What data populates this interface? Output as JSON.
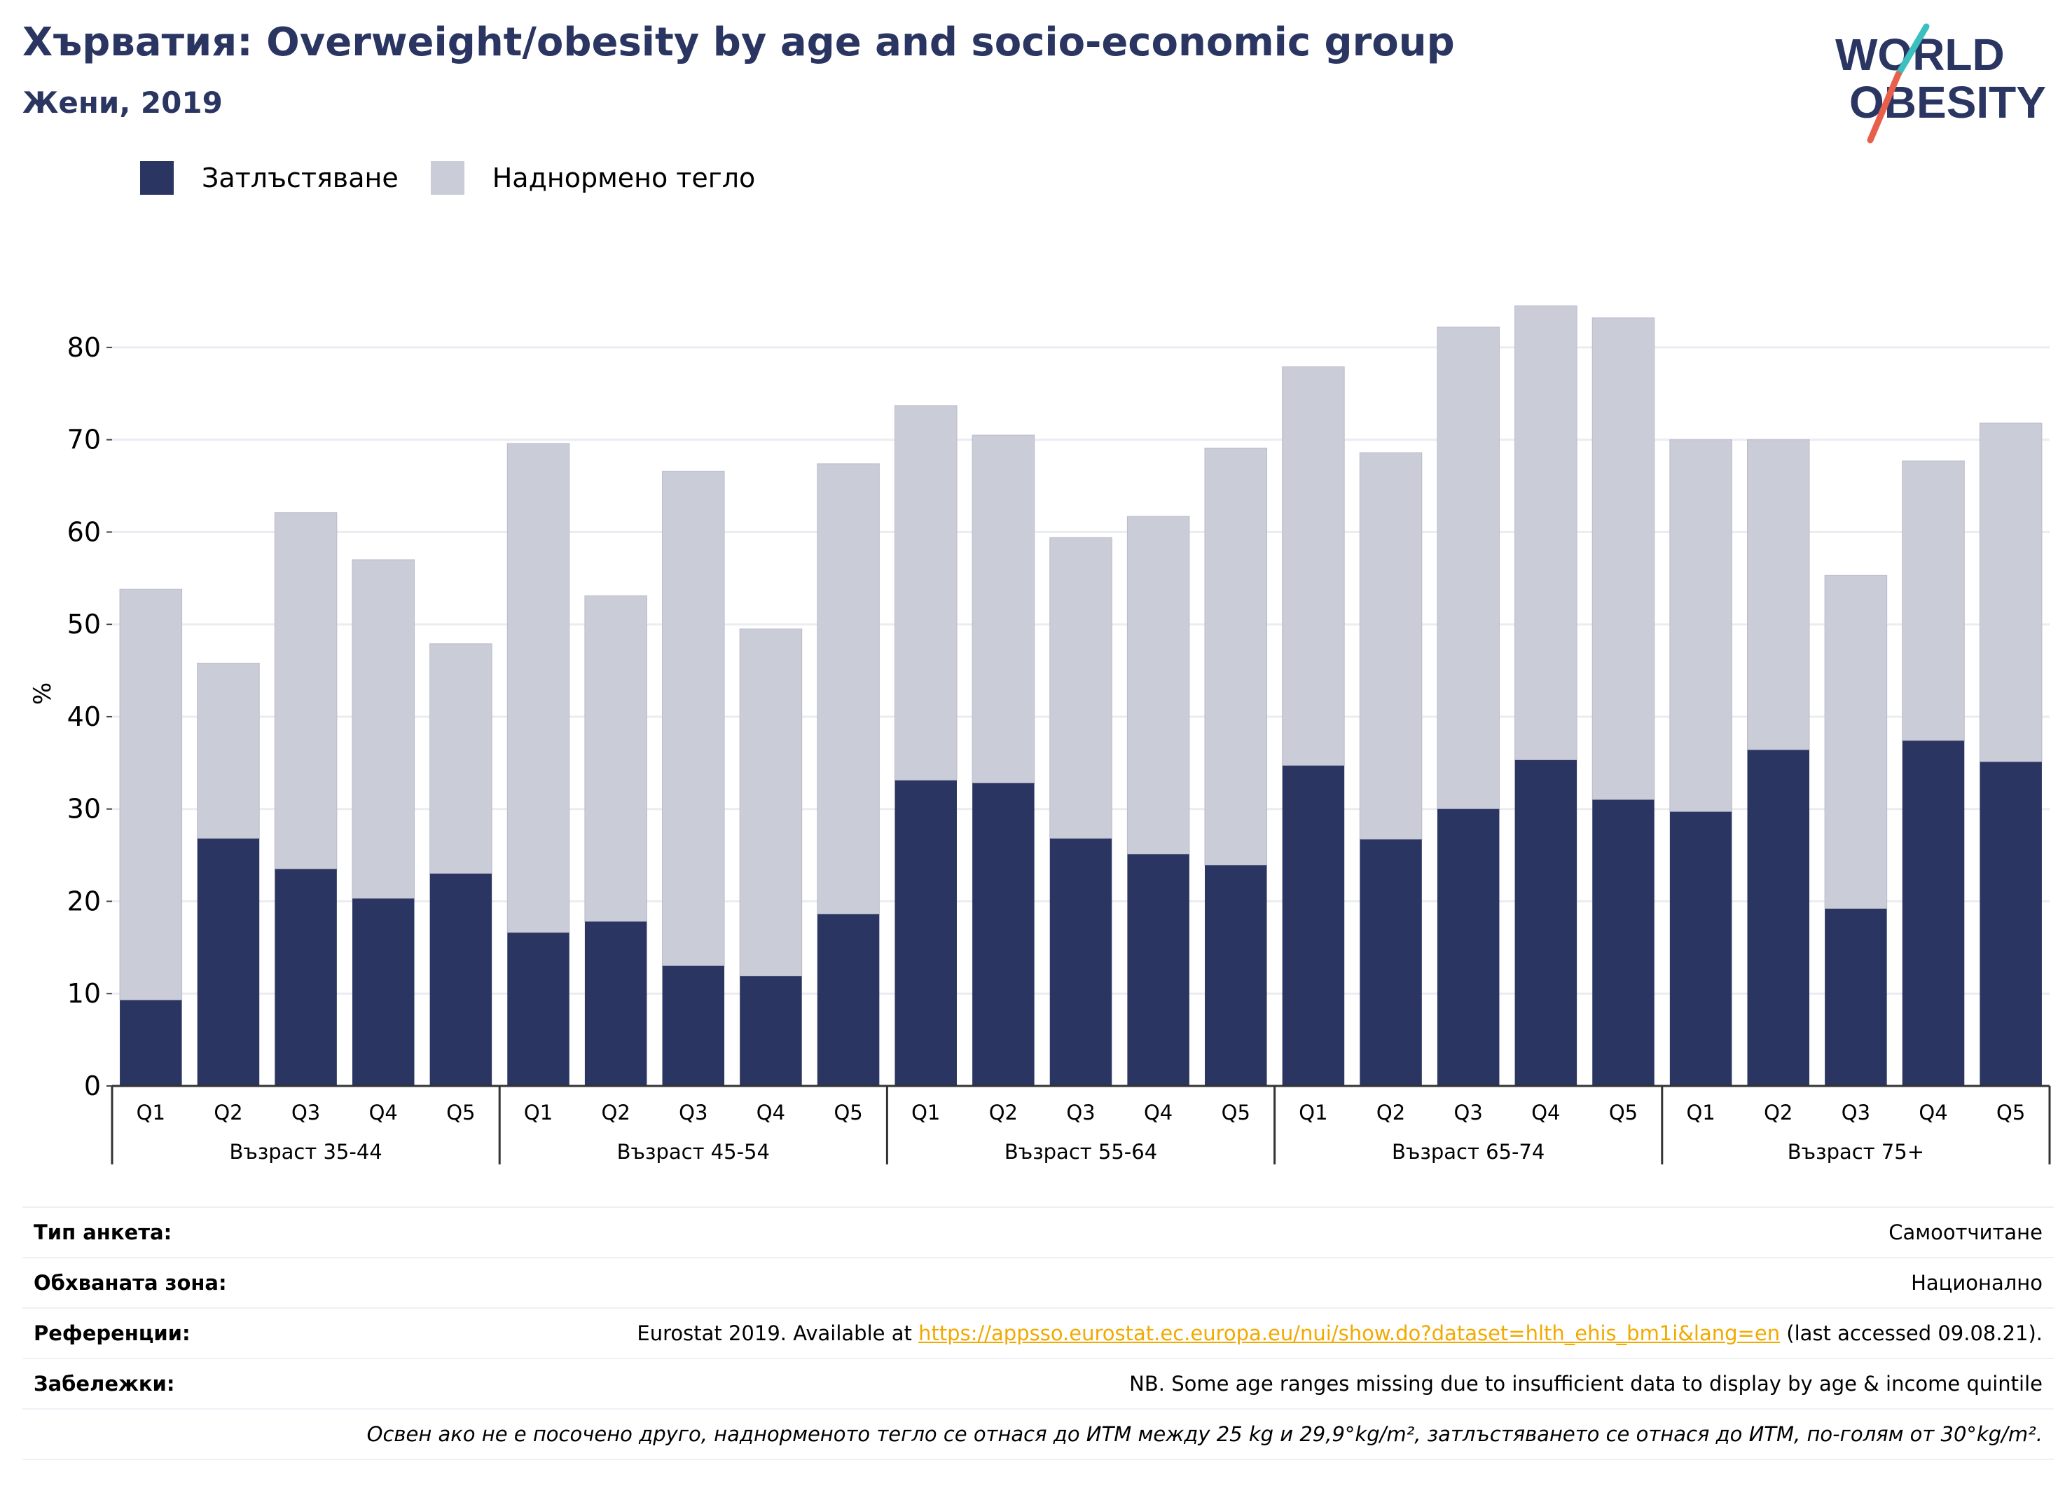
{
  "header": {
    "title": "Хърватия: Overweight/obesity by age and socio-economic group",
    "subtitle": "Жени, 2019",
    "logo_line1": "WORLD",
    "logo_line2": "OBESITY"
  },
  "colors": {
    "obesity": "#2a3561",
    "overweight": "#caccd8",
    "title": "#2a3561",
    "link": "#f2a900",
    "logo_teal": "#3bbfbf",
    "logo_red": "#e8604c"
  },
  "chart_data": {
    "type": "bar",
    "stacked": true,
    "ylabel": "%",
    "ylim": [
      0,
      85
    ],
    "yticks": [
      0,
      10,
      20,
      30,
      40,
      50,
      60,
      70,
      80
    ],
    "grid": true,
    "legend": [
      {
        "name": "Затлъстяване",
        "color": "#2a3561"
      },
      {
        "name": "Наднормено тегло",
        "color": "#caccd8"
      }
    ],
    "groups": [
      {
        "label": "Възраст 35-44",
        "categories": [
          "Q1",
          "Q2",
          "Q3",
          "Q4",
          "Q5"
        ]
      },
      {
        "label": "Възраст 45-54",
        "categories": [
          "Q1",
          "Q2",
          "Q3",
          "Q4",
          "Q5"
        ]
      },
      {
        "label": "Възраст 55-64",
        "categories": [
          "Q1",
          "Q2",
          "Q3",
          "Q4",
          "Q5"
        ]
      },
      {
        "label": "Възраст 65-74",
        "categories": [
          "Q1",
          "Q2",
          "Q3",
          "Q4",
          "Q5"
        ]
      },
      {
        "label": "Възраст 75+",
        "categories": [
          "Q1",
          "Q2",
          "Q3",
          "Q4",
          "Q5"
        ]
      }
    ],
    "series": [
      {
        "name": "Затлъстяване",
        "values": [
          9.3,
          26.8,
          23.5,
          20.3,
          23.0,
          16.6,
          17.8,
          13.0,
          11.9,
          18.6,
          33.1,
          32.8,
          26.8,
          25.1,
          23.9,
          34.7,
          26.7,
          30.0,
          35.3,
          31.0,
          29.7,
          36.4,
          19.2,
          37.4,
          35.1
        ]
      },
      {
        "name": "Наднормено тегло",
        "values": [
          44.5,
          19.0,
          38.6,
          36.7,
          24.9,
          53.0,
          35.3,
          53.6,
          37.6,
          48.8,
          40.6,
          37.7,
          32.6,
          36.6,
          45.2,
          43.2,
          41.9,
          52.2,
          49.2,
          52.2,
          40.3,
          33.6,
          36.1,
          30.3,
          36.7
        ]
      }
    ]
  },
  "info": {
    "rows": [
      {
        "key": "Тип анкета:",
        "value": "Самоотчитане"
      },
      {
        "key": "Обхваната зона:",
        "value": "Национално"
      },
      {
        "key": "Референции:",
        "value_pre": "Eurostat 2019. Available at ",
        "link": "https://appsso.eurostat.ec.europa.eu/nui/show.do?dataset=hlth_ehis_bm1i&lang=en",
        "value_post": " (last accessed 09.08.21)."
      },
      {
        "key": "Забележки:",
        "value": "NB. Some age ranges missing due to insufficient data to display by age & income quintile"
      }
    ],
    "footnote": "Освен ако не е посочено друго, наднорменото тегло се отнася до ИТМ между 25 kg и 29,9°kg/m², затлъстяването се отнася до ИТМ, по-голям от 30°kg/m²."
  }
}
